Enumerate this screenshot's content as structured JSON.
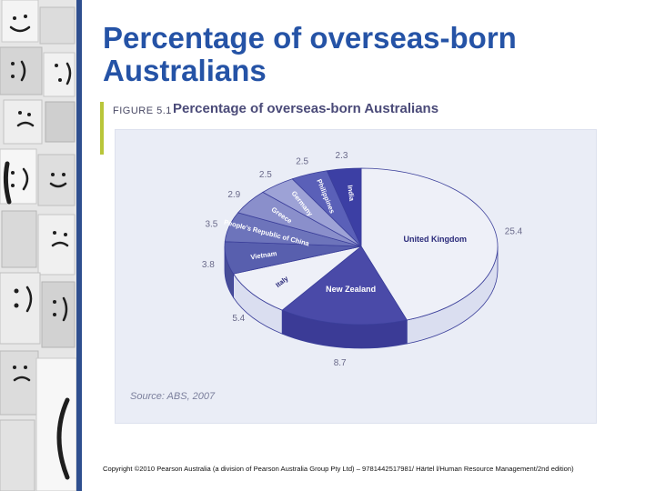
{
  "slide": {
    "title": "Percentage of overseas-born Australians",
    "copyright": "Copyright ©2010 Pearson Australia (a division of Pearson Australia Group Pty Ltd) – 9781442517981/ Härtel l/Human Resource Management/2nd edition)"
  },
  "figure": {
    "label": "FIGURE 5.1",
    "title": "Percentage of overseas-born Australians",
    "source": "Source: ABS, 2007"
  },
  "chart_data": {
    "type": "pie",
    "title": "Percentage of overseas-born Australians",
    "slices": [
      {
        "label": "United Kingdom",
        "value": 25.4,
        "value_label": "25.4"
      },
      {
        "label": "New Zealand",
        "value": 8.7,
        "value_label": "8.7"
      },
      {
        "label": "Italy",
        "value": 5.4,
        "value_label": "5.4"
      },
      {
        "label": "Vietnam",
        "value": 3.8,
        "value_label": "3.8"
      },
      {
        "label": "People's Republic of China",
        "value": 3.5,
        "value_label": "3.5"
      },
      {
        "label": "Greece",
        "value": 2.9,
        "value_label": "2.9"
      },
      {
        "label": "Germany",
        "value": 2.5,
        "value_label": "2.5"
      },
      {
        "label": "Philippines",
        "value": 2.5,
        "value_label": "2.5"
      },
      {
        "label": "India",
        "value": 2.3,
        "value_label": "2.3"
      }
    ],
    "colors": [
      "#eef0f8",
      "#4a4aa8",
      "#eef0f8",
      "#585fae",
      "#6d74bb",
      "#8a8fcb",
      "#9da2d6",
      "#5a60b8",
      "#3c3fa4"
    ],
    "side_colors": [
      "#dadef0",
      "#3b3b96",
      "#dadef0",
      "#474d98",
      "#5a60a6",
      "#7479b4",
      "#868bc0",
      "#4a509e",
      "#30338f"
    ],
    "label_color": "#2a2a7a",
    "value_color": "#6a6a8a"
  }
}
